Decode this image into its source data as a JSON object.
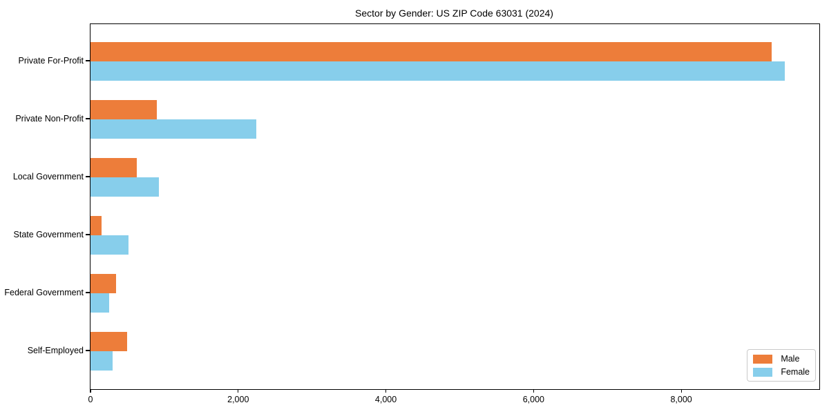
{
  "chart_data": {
    "type": "bar",
    "orientation": "horizontal",
    "title": "Sector by Gender: US ZIP Code 63031 (2024)",
    "xlabel": "",
    "ylabel": "",
    "categories": [
      "Private For-Profit",
      "Private Non-Profit",
      "Local Government",
      "State Government",
      "Federal Government",
      "Self-Employed"
    ],
    "series": [
      {
        "name": "Male",
        "color": "#ED7D3A",
        "values": [
          9220,
          895,
          625,
          150,
          350,
          500
        ]
      },
      {
        "name": "Female",
        "color": "#87CEEB",
        "values": [
          9400,
          2245,
          925,
          510,
          255,
          300
        ]
      }
    ],
    "xlim": [
      0,
      9870
    ],
    "x_ticks": [
      0,
      2000,
      4000,
      6000,
      8000
    ],
    "x_tick_labels": [
      "0",
      "2,000",
      "4,000",
      "6,000",
      "8,000"
    ],
    "grid": false,
    "legend_position": "lower right"
  }
}
